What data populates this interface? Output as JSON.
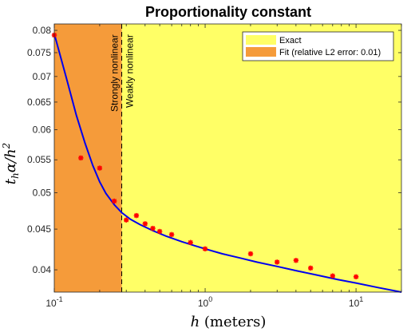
{
  "chart_data": {
    "type": "scatter",
    "title": "Proportionality constant",
    "xlabel": "h (meters)",
    "ylabel": "t_h α / h²",
    "xscale": "log",
    "yscale": "log",
    "xlim": [
      0.1,
      20
    ],
    "ylim": [
      0.0375,
      0.0815
    ],
    "x_tick_labels": [
      "10^-1",
      "10^0",
      "10^1"
    ],
    "y_ticks": [
      0.04,
      0.045,
      0.05,
      0.055,
      0.06,
      0.065,
      0.07,
      0.075,
      0.08
    ],
    "y_tick_labels": [
      "0.04",
      "0.045",
      "0.05",
      "0.055",
      "0.06",
      "0.065",
      "0.07",
      "0.075",
      "0.08"
    ],
    "regions": [
      {
        "name": "Strongly nonlinear",
        "x_from": 0.1,
        "x_to": 0.28,
        "color": "#f59b3a"
      },
      {
        "name": "Weakly nonlinear",
        "x_from": 0.28,
        "x_to": 20,
        "color": "#ffff66"
      }
    ],
    "boundary_x": 0.28,
    "legend": {
      "placement": "top-right",
      "entries": [
        {
          "label": "Exact",
          "color": "#ffff66"
        },
        {
          "label": "Fit (relative L2 error: 0.01)",
          "color": "#f59b3a"
        }
      ]
    },
    "exact_points": {
      "color": "#ff0000",
      "marker": "asterisk",
      "x": [
        0.1,
        0.15,
        0.2,
        0.25,
        0.3,
        0.35,
        0.4,
        0.45,
        0.5,
        0.6,
        0.8,
        1.0,
        2.0,
        3.0,
        4.0,
        5.0,
        7.0,
        10.0
      ],
      "y": [
        0.0789,
        0.0553,
        0.0537,
        0.0488,
        0.0462,
        0.0468,
        0.0457,
        0.0451,
        0.0447,
        0.0443,
        0.0433,
        0.0425,
        0.0419,
        0.0409,
        0.0411,
        0.0402,
        0.0393,
        0.0392
      ]
    },
    "fit_curve": {
      "color": "#0000ee",
      "x": [
        0.1,
        0.12,
        0.14,
        0.16,
        0.18,
        0.2,
        0.22,
        0.25,
        0.28,
        0.32,
        0.37,
        0.45,
        0.55,
        0.7,
        0.85,
        1.0,
        1.3,
        1.7,
        2.2,
        3.0,
        4.0,
        5.5,
        7.5,
        10.0,
        14.0,
        20.0
      ],
      "y": [
        0.0792,
        0.0698,
        0.0626,
        0.0577,
        0.0541,
        0.0516,
        0.0499,
        0.0483,
        0.0472,
        0.0463,
        0.0456,
        0.0448,
        0.0441,
        0.0434,
        0.0429,
        0.0425,
        0.0419,
        0.0414,
        0.0409,
        0.0404,
        0.0399,
        0.0394,
        0.0389,
        0.0385,
        0.038,
        0.0375
      ]
    }
  }
}
